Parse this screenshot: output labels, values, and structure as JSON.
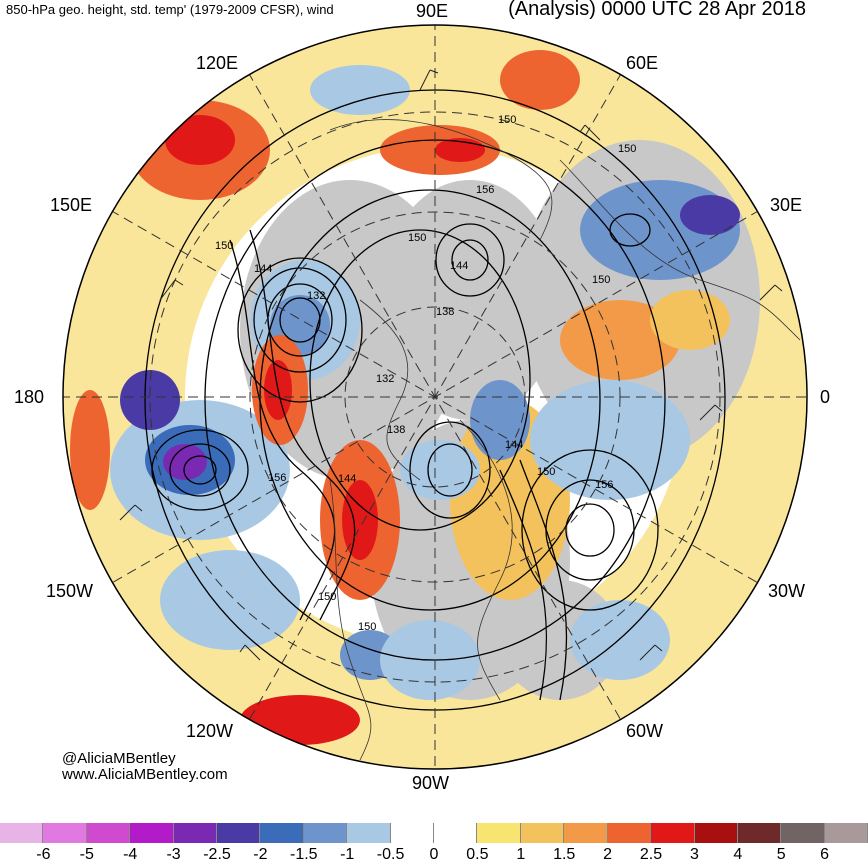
{
  "header": {
    "left_title": "850-hPa geo. height, std. temp' (1979-2009 CFSR), wind",
    "right_title": "(Analysis) 0000 UTC 28 Apr 2018"
  },
  "longitude_labels": {
    "lon_90e": "90E",
    "lon_120e": "120E",
    "lon_60e": "60E",
    "lon_150e": "150E",
    "lon_30e": "30E",
    "lon_180": "180",
    "lon_0": "0",
    "lon_150w": "150W",
    "lon_30w": "30W",
    "lon_120w": "120W",
    "lon_60w": "60W",
    "lon_90w": "90W"
  },
  "contour_labels": [
    "150",
    "150",
    "156",
    "150",
    "144",
    "150",
    "144",
    "132",
    "138",
    "132",
    "150",
    "138",
    "144",
    "150",
    "156",
    "156",
    "144",
    "150",
    "150"
  ],
  "credits": {
    "handle": "@AliciaMBentley",
    "website": "www.AliciaMBentley.com"
  },
  "colorbar": {
    "colors": [
      "#e8b4e8",
      "#e07ae0",
      "#d04ad0",
      "#b21cc8",
      "#7a2ab2",
      "#4a3aa6",
      "#3a6cba",
      "#6e94cc",
      "#a8c8e4",
      "#ffffff",
      "#ffffff",
      "#f8e470",
      "#f4c25c",
      "#f29a48",
      "#ee6430",
      "#e01818",
      "#a80f0f",
      "#6e2a2a",
      "#706464",
      "#a89a9a"
    ],
    "tick_labels": [
      "-6",
      "-5",
      "-4",
      "-3",
      "-2.5",
      "-2",
      "-1.5",
      "-1",
      "-0.5",
      "0",
      "0.5",
      "1",
      "1.5",
      "2",
      "2.5",
      "3",
      "4",
      "5",
      "6"
    ]
  }
}
